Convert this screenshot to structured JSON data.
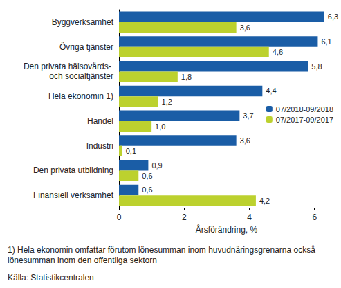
{
  "chart_data": {
    "type": "bar",
    "orientation": "horizontal",
    "categories": [
      "Byggverksamhet",
      "Övriga tjänster",
      "Den privata hälsovårds- och socialtjänster",
      "Hela ekonomin 1)",
      "Handel",
      "Industri",
      "Den privata utbildning",
      "Finansiell verksamhet"
    ],
    "series": [
      {
        "name": "07/2018-09/2018",
        "color": "#1a5da6",
        "values": [
          6.3,
          6.1,
          5.8,
          4.4,
          3.7,
          3.6,
          0.9,
          0.6
        ],
        "value_labels": [
          "6,3",
          "6,1",
          "5,8",
          "4,4",
          "3,7",
          "3,6",
          "0,9",
          "0,6"
        ]
      },
      {
        "name": "07/2017-09/2017",
        "color": "#bcd12e",
        "values": [
          3.6,
          4.6,
          1.8,
          1.2,
          1.0,
          0.1,
          0.6,
          4.2
        ],
        "value_labels": [
          "3,6",
          "4,6",
          "1,8",
          "1,2",
          "1,0",
          "0,1",
          "0,6",
          "4,2"
        ]
      }
    ],
    "x_label": "Årsförändring, %",
    "xlim": [
      0,
      6.6
    ],
    "xticks": [
      0,
      2,
      4,
      6
    ],
    "grid": false,
    "legend": "right",
    "data_labels": true,
    "annotations": [
      "1) Hela ekonomin omfattar förutom lönesumman inom huvudnäringsgrenarna också lönesumman inom den offentliga sektorn",
      "Källa: Statistikcentralen"
    ]
  }
}
